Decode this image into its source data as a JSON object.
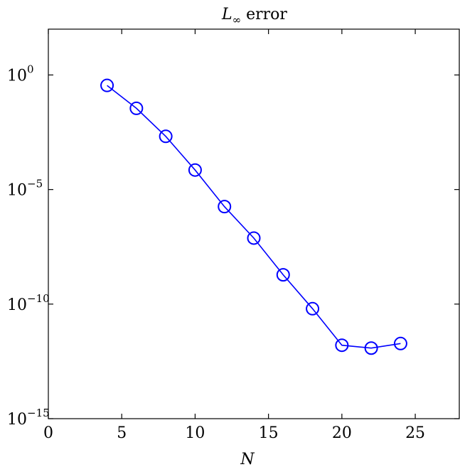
{
  "chart_data": {
    "type": "line",
    "title": {
      "main": "L",
      "subscript": "∞",
      "rest": " error"
    },
    "xlabel": "N",
    "ylabel": "",
    "xlim": [
      0,
      28
    ],
    "ylim_log10": [
      -15,
      2
    ],
    "y_scale": "log",
    "grid": false,
    "legend": "none",
    "x_ticks": [
      {
        "value": 0,
        "label": "0"
      },
      {
        "value": 5,
        "label": "5"
      },
      {
        "value": 10,
        "label": "10"
      },
      {
        "value": 15,
        "label": "15"
      },
      {
        "value": 20,
        "label": "20"
      },
      {
        "value": 25,
        "label": "25"
      }
    ],
    "y_ticks": [
      {
        "value": 1,
        "base": "10",
        "exponent": "0"
      },
      {
        "value": 1e-05,
        "base": "10",
        "exponent": "−5"
      },
      {
        "value": 1e-10,
        "base": "10",
        "exponent": "−10"
      },
      {
        "value": 1e-15,
        "base": "10",
        "exponent": "−15"
      }
    ],
    "series": [
      {
        "color": "#0000ff",
        "marker": "circle",
        "x": [
          4,
          6,
          8,
          10,
          12,
          14,
          16,
          18,
          20,
          22,
          24
        ],
        "y": [
          0.35,
          0.035,
          0.0021,
          7.1e-05,
          1.8e-06,
          7.6e-08,
          1.9e-09,
          6.3e-11,
          1.6e-12,
          1.2e-12,
          1.9e-12
        ]
      }
    ]
  }
}
